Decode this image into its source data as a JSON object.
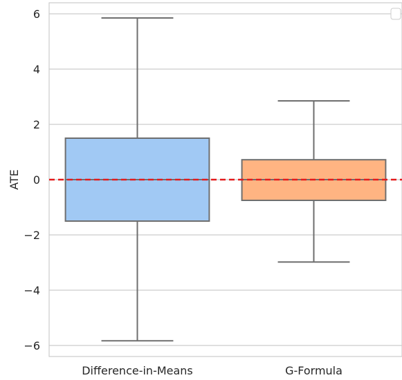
{
  "chart_data": {
    "type": "box",
    "title": "",
    "xlabel": "",
    "ylabel": "ATE",
    "ylim": [
      -6.4,
      6.4
    ],
    "yticks": [
      6,
      4,
      2,
      0,
      -2,
      -4,
      -6
    ],
    "ytick_labels": [
      "6",
      "4",
      "2",
      "0",
      "−2",
      "−4",
      "−6"
    ],
    "grid": true,
    "legend": "top-right",
    "reference_line": {
      "y": 0,
      "color": "#e41a1c",
      "style": "dashed"
    },
    "categories": [
      "Difference-in-Means",
      "G-Formula"
    ],
    "boxes": [
      {
        "category": "Difference-in-Means",
        "whisker_low": -5.83,
        "q1": -1.5,
        "median": 0.0,
        "q3": 1.5,
        "whisker_high": 5.85,
        "color": "#a1c9f4"
      },
      {
        "category": "G-Formula",
        "whisker_low": -2.98,
        "q1": -0.75,
        "median": 0.0,
        "q3": 0.72,
        "whisker_high": 2.85,
        "color": "#ffb482"
      }
    ]
  }
}
